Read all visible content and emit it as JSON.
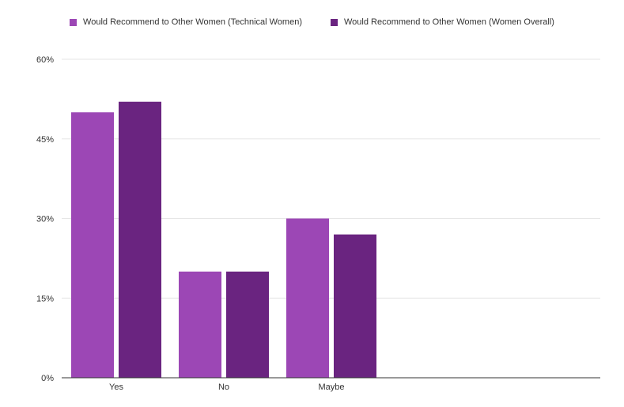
{
  "chart_data": {
    "type": "bar",
    "categories": [
      "Yes",
      "No",
      "Maybe"
    ],
    "series": [
      {
        "name": "Would Recommend to Other Women (Technical Women)",
        "values": [
          50,
          20,
          30
        ],
        "color": "#9c47b5"
      },
      {
        "name": "Would Recommend to Other Women (Women Overall)",
        "values": [
          52,
          20,
          27
        ],
        "color": "#6a2480"
      }
    ],
    "ylim": [
      0,
      60
    ],
    "yticks": [
      "0%",
      "15%",
      "30%",
      "45%",
      "60%"
    ],
    "grid": true,
    "legend_position": "top-center"
  }
}
